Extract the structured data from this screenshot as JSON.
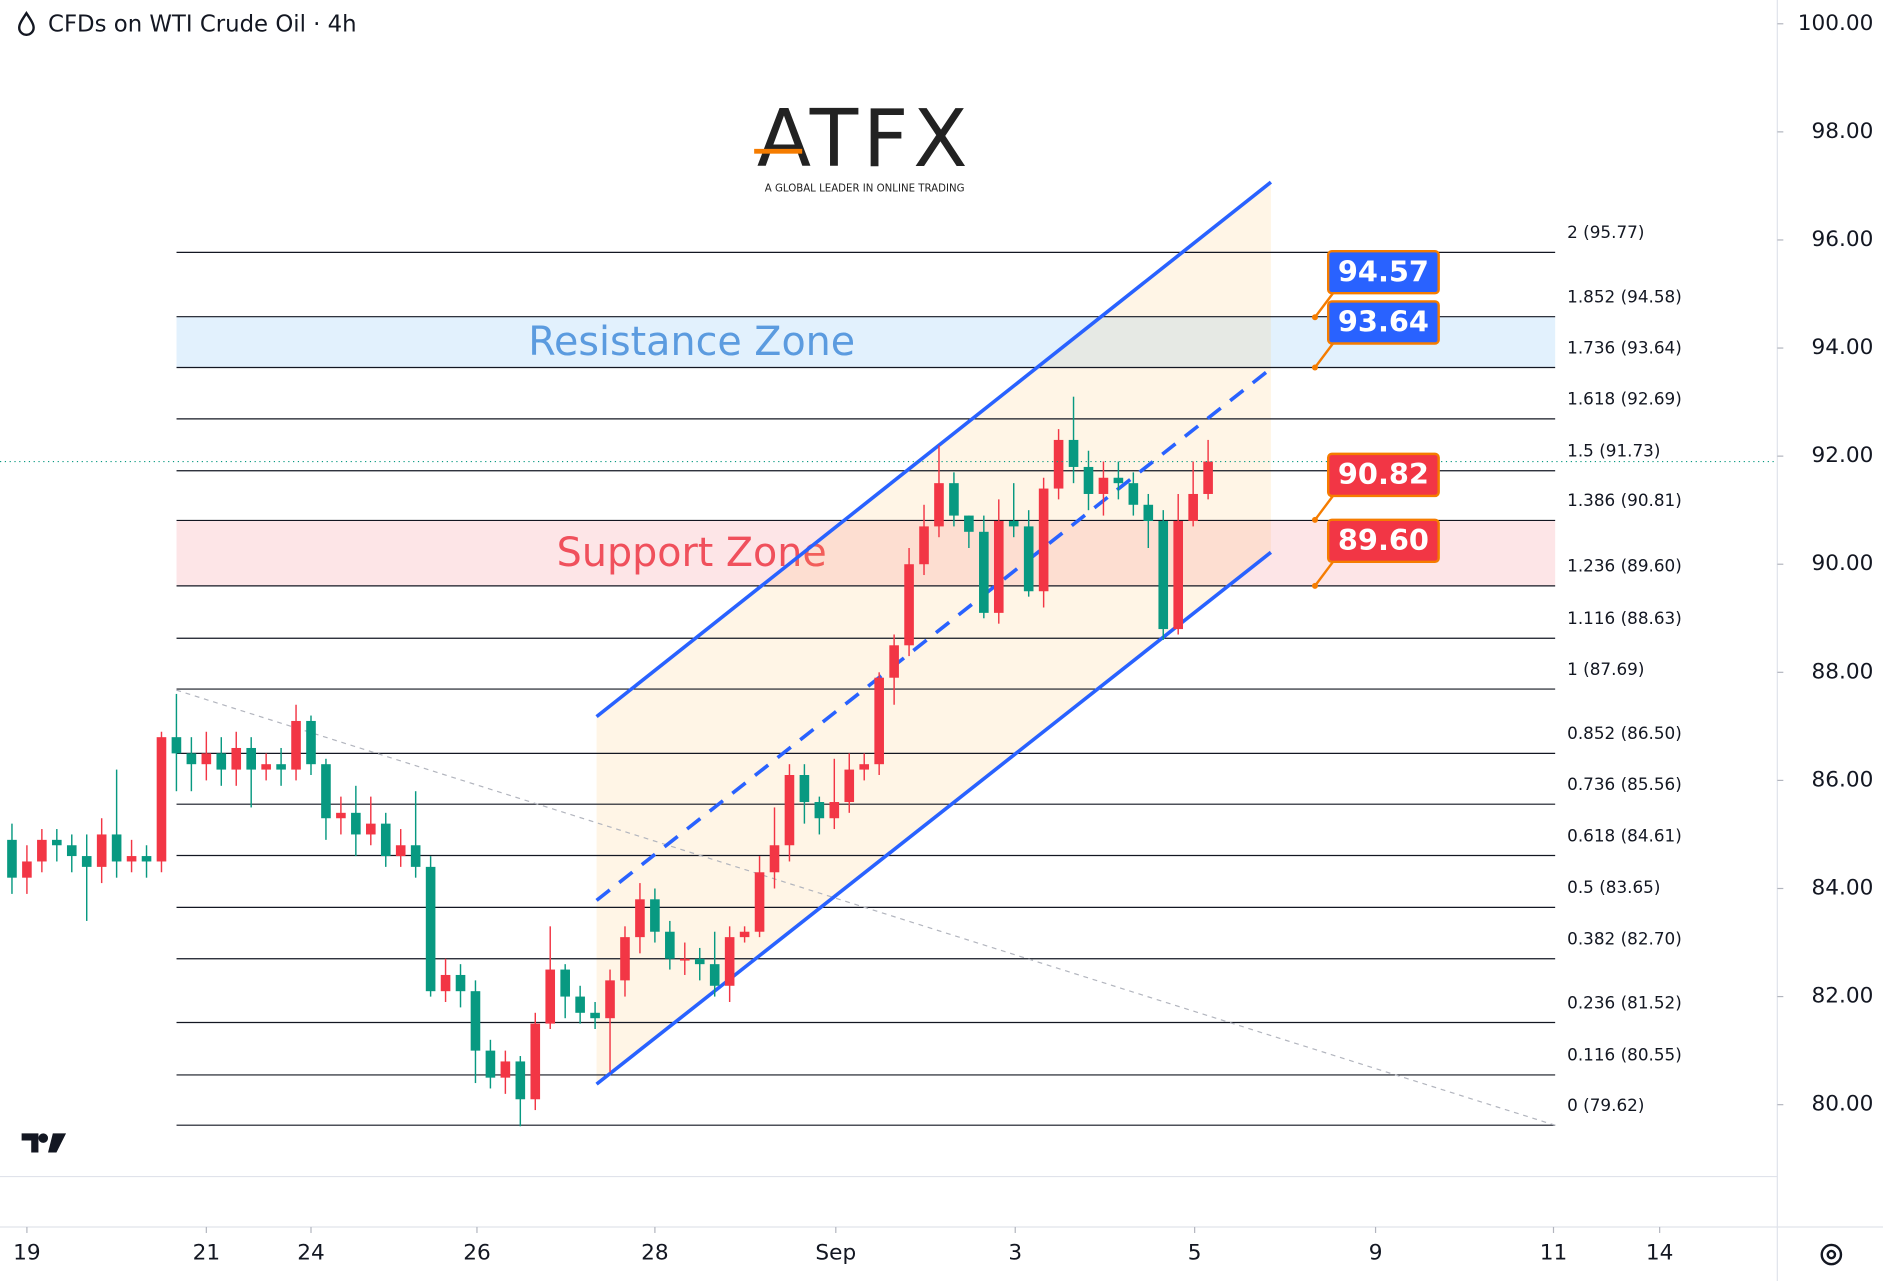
{
  "chart_data": {
    "type": "candlestick",
    "title": "CFDs on WTI Crude Oil · 4h",
    "logo": {
      "name": "ATFX",
      "tagline": "A GLOBAL LEADER IN ONLINE TRADING"
    },
    "up_color": "#f23645",
    "down_color": "#089981",
    "open": [
      84.9,
      84.2,
      84.5,
      84.9,
      84.8,
      84.6,
      84.4,
      85.0,
      84.5,
      84.6,
      84.5,
      86.8,
      86.5,
      86.3,
      86.5,
      86.2,
      86.6,
      86.2,
      86.3,
      86.2,
      87.1,
      86.3,
      85.3,
      85.4,
      85.0,
      85.2,
      84.6,
      84.8,
      84.4,
      82.1,
      82.4,
      82.1,
      81.0,
      80.5,
      80.8,
      80.1,
      81.5,
      82.5,
      82.0,
      81.7,
      81.6,
      82.3,
      83.1,
      83.8,
      83.2,
      82.7,
      82.7,
      82.6,
      82.2,
      83.1,
      83.2,
      84.3,
      84.8,
      86.1,
      85.6,
      85.3,
      85.6,
      86.2,
      86.3,
      87.9,
      88.5,
      90.0,
      90.7,
      91.5,
      90.9,
      90.6,
      89.1,
      90.8,
      90.7,
      89.5,
      91.4,
      92.3,
      91.8,
      91.3,
      91.6,
      91.5,
      91.1,
      90.8,
      88.8,
      90.8,
      91.3
    ],
    "high": [
      85.2,
      84.8,
      85.1,
      85.1,
      85.0,
      85.0,
      85.3,
      86.2,
      84.9,
      84.8,
      86.9,
      87.6,
      86.8,
      86.9,
      86.8,
      86.9,
      86.8,
      86.5,
      86.6,
      87.4,
      87.2,
      86.4,
      85.7,
      85.9,
      85.7,
      85.4,
      85.1,
      85.8,
      84.6,
      82.7,
      82.6,
      82.3,
      81.2,
      81.0,
      80.9,
      81.7,
      83.3,
      82.6,
      82.2,
      81.9,
      82.5,
      83.3,
      84.1,
      84.0,
      83.4,
      83.0,
      82.9,
      83.2,
      83.3,
      83.3,
      84.6,
      85.5,
      86.3,
      86.3,
      85.7,
      86.4,
      86.5,
      86.5,
      88.0,
      88.7,
      90.3,
      91.1,
      92.2,
      91.7,
      90.9,
      90.9,
      91.2,
      91.5,
      91.0,
      91.6,
      92.5,
      93.1,
      92.1,
      91.9,
      91.9,
      91.7,
      91.3,
      91.0,
      91.3,
      91.9,
      92.3
    ],
    "low": [
      83.9,
      83.9,
      84.3,
      84.5,
      84.3,
      83.4,
      84.1,
      84.2,
      84.3,
      84.2,
      84.3,
      85.8,
      85.8,
      86.0,
      85.9,
      85.9,
      85.5,
      86.0,
      85.9,
      86.0,
      86.1,
      84.9,
      85.0,
      84.6,
      84.8,
      84.4,
      84.4,
      84.2,
      82.0,
      81.9,
      81.8,
      80.4,
      80.3,
      80.2,
      79.6,
      79.9,
      81.4,
      81.6,
      81.5,
      81.4,
      80.6,
      82.0,
      82.8,
      83.0,
      82.5,
      82.4,
      82.3,
      82.0,
      81.9,
      83.0,
      83.1,
      84.0,
      84.5,
      85.2,
      85.0,
      85.1,
      85.4,
      86.0,
      86.1,
      87.4,
      88.3,
      89.8,
      90.5,
      90.7,
      90.3,
      89.0,
      88.9,
      90.5,
      89.4,
      89.2,
      91.2,
      91.5,
      91.0,
      90.9,
      91.2,
      90.9,
      90.3,
      88.6,
      88.7,
      90.7,
      91.2
    ],
    "close": [
      84.2,
      84.5,
      84.9,
      84.8,
      84.6,
      84.4,
      85.0,
      84.5,
      84.6,
      84.5,
      86.8,
      86.5,
      86.3,
      86.5,
      86.2,
      86.6,
      86.2,
      86.3,
      86.2,
      87.1,
      86.3,
      85.3,
      85.4,
      85.0,
      85.2,
      84.6,
      84.8,
      84.4,
      82.1,
      82.4,
      82.1,
      81.0,
      80.5,
      80.8,
      80.1,
      81.5,
      82.5,
      82.0,
      81.7,
      81.6,
      82.3,
      83.1,
      83.8,
      83.2,
      82.7,
      82.7,
      82.6,
      82.2,
      83.1,
      83.2,
      84.3,
      84.8,
      86.1,
      85.6,
      85.3,
      85.6,
      86.2,
      86.3,
      87.9,
      88.5,
      90.0,
      90.7,
      91.5,
      90.9,
      90.6,
      89.1,
      90.8,
      90.7,
      89.5,
      91.4,
      92.3,
      91.8,
      91.3,
      91.6,
      91.5,
      91.1,
      90.8,
      88.8,
      90.8,
      91.3,
      91.9
    ],
    "xlim": [
      -0.8,
      118.07
    ],
    "xticks": [
      {
        "value": 1,
        "label": "19"
      },
      {
        "value": 13,
        "label": "21"
      },
      {
        "value": 20,
        "label": "24"
      },
      {
        "value": 31.1,
        "label": "26"
      },
      {
        "value": 43,
        "label": "28"
      },
      {
        "value": 55.1,
        "label": "Sep"
      },
      {
        "value": 67.1,
        "label": "3"
      },
      {
        "value": 79.1,
        "label": "5"
      },
      {
        "value": 91.2,
        "label": "9"
      },
      {
        "value": 103.1,
        "label": "11"
      },
      {
        "value": 110.2,
        "label": "14"
      }
    ],
    "ylim": [
      78.67,
      100.44
    ],
    "yticks": [
      {
        "value": 80,
        "label": "80.00"
      },
      {
        "value": 82,
        "label": "82.00"
      },
      {
        "value": 84,
        "label": "84.00"
      },
      {
        "value": 86,
        "label": "86.00"
      },
      {
        "value": 88,
        "label": "88.00"
      },
      {
        "value": 90,
        "label": "90.00"
      },
      {
        "value": 92,
        "label": "92.00"
      },
      {
        "value": 94,
        "label": "94.00"
      },
      {
        "value": 96,
        "label": "96.00"
      },
      {
        "value": 98,
        "label": "98.00"
      },
      {
        "value": 100,
        "label": "100.00"
      }
    ],
    "fib_levels": [
      {
        "value": 95.77,
        "label": "2 (95.77)"
      },
      {
        "value": 94.58,
        "label": "1.852 (94.58)"
      },
      {
        "value": 93.64,
        "label": "1.736 (93.64)"
      },
      {
        "value": 92.69,
        "label": "1.618 (92.69)"
      },
      {
        "value": 91.73,
        "label": "1.5 (91.73)"
      },
      {
        "value": 90.81,
        "label": "1.386 (90.81)"
      },
      {
        "value": 89.6,
        "label": "1.236 (89.60)"
      },
      {
        "value": 88.63,
        "label": "1.116 (88.63)"
      },
      {
        "value": 87.69,
        "label": "1 (87.69)"
      },
      {
        "value": 86.5,
        "label": "0.852 (86.50)"
      },
      {
        "value": 85.56,
        "label": "0.736 (85.56)"
      },
      {
        "value": 84.61,
        "label": "0.618 (84.61)"
      },
      {
        "value": 83.65,
        "label": "0.5 (83.65)"
      },
      {
        "value": 82.7,
        "label": "0.382 (82.70)"
      },
      {
        "value": 81.52,
        "label": "0.236 (81.52)"
      },
      {
        "value": 80.55,
        "label": "0.116 (80.55)"
      },
      {
        "value": 79.62,
        "label": "0 (79.62)"
      }
    ],
    "zones": [
      {
        "name": "Resistance Zone",
        "low": 93.64,
        "high": 94.58,
        "color": "#2196f3",
        "text_color": "#5b9bdf"
      },
      {
        "name": "Support Zone",
        "low": 89.6,
        "high": 90.81,
        "color": "#f23645",
        "text_color": "#f0505c"
      }
    ],
    "price_tags": [
      {
        "value": 94.57,
        "label": "94.57",
        "color": "#2962ff"
      },
      {
        "value": 93.64,
        "label": "93.64",
        "color": "#2962ff"
      },
      {
        "value": 90.82,
        "label": "90.82",
        "color": "#f23645"
      },
      {
        "value": 89.6,
        "label": "89.60",
        "color": "#f23645"
      }
    ],
    "channel": {
      "x": [
        39.1,
        84.2
      ],
      "upper": [
        87.18,
        97.07
      ],
      "middle": [
        83.78,
        93.62
      ],
      "lower": [
        80.38,
        90.22
      ],
      "color": "#2962ff"
    },
    "trendline": {
      "x": [
        11.0,
        103.2
      ],
      "y": [
        87.67,
        79.62
      ]
    }
  }
}
